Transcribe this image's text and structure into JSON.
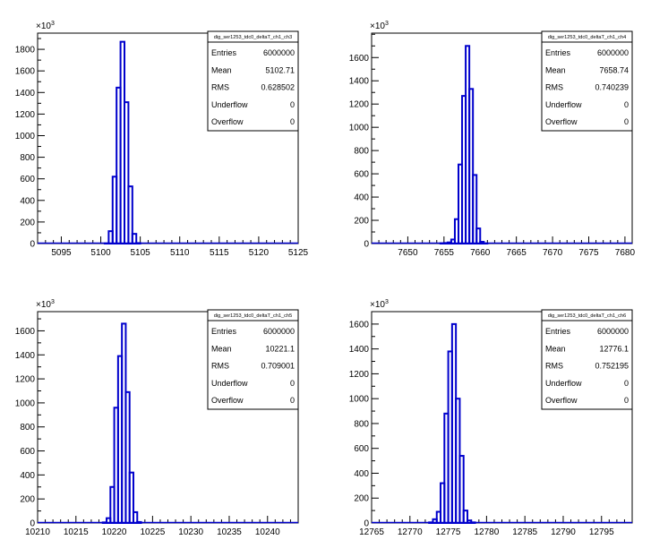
{
  "chart_data": [
    {
      "type": "histogram",
      "title": "dig_ser1253_tdc0_deltaT_ch1_ch3",
      "y_exponent": "×10^3",
      "xlim": [
        5092,
        5125
      ],
      "ylim": [
        0,
        1950
      ],
      "x_ticks": [
        5095,
        5100,
        5105,
        5110,
        5115,
        5120,
        5125
      ],
      "y_ticks": [
        0,
        200,
        400,
        600,
        800,
        1000,
        1200,
        1400,
        1600,
        1800
      ],
      "bin_width": 0.5,
      "bins_x_start": [
        5100,
        5100.5,
        5101,
        5101.5,
        5102,
        5102.5,
        5103,
        5103.5,
        5104,
        5104.5
      ],
      "values": [
        0,
        2,
        115,
        620,
        1445,
        1870,
        1310,
        530,
        90,
        5
      ],
      "stats": [
        {
          "label": "Entries",
          "value": "6000000"
        },
        {
          "label": "Mean",
          "value": "5102.71"
        },
        {
          "label": "RMS",
          "value": "0.628502"
        },
        {
          "label": "Underflow",
          "value": "0"
        },
        {
          "label": "Overflow",
          "value": "0"
        }
      ]
    },
    {
      "type": "histogram",
      "title": "dig_ser1253_tdc0_deltaT_ch1_ch4",
      "y_exponent": "×10^3",
      "xlim": [
        7645,
        7681
      ],
      "ylim": [
        0,
        1810
      ],
      "x_ticks": [
        7650,
        7655,
        7660,
        7665,
        7670,
        7675,
        7680
      ],
      "y_ticks": [
        0,
        200,
        400,
        600,
        800,
        1000,
        1200,
        1400,
        1600
      ],
      "bin_width": 0.5,
      "bins_x_start": [
        7654.5,
        7655,
        7655.5,
        7656,
        7656.5,
        7657,
        7657.5,
        7658,
        7658.5,
        7659,
        7659.5,
        7660,
        7660.5
      ],
      "values": [
        3,
        5,
        10,
        35,
        210,
        680,
        1270,
        1700,
        1330,
        590,
        130,
        15,
        2
      ],
      "stats": [
        {
          "label": "Entries",
          "value": "6000000"
        },
        {
          "label": "Mean",
          "value": "7658.74"
        },
        {
          "label": "RMS",
          "value": "0.740239"
        },
        {
          "label": "Underflow",
          "value": "0"
        },
        {
          "label": "Overflow",
          "value": "0"
        }
      ]
    },
    {
      "type": "histogram",
      "title": "dig_ser1253_tdc0_deltaT_ch1_ch5",
      "y_exponent": "×10^3",
      "xlim": [
        10210,
        10244
      ],
      "ylim": [
        0,
        1760
      ],
      "x_ticks": [
        10210,
        10215,
        10220,
        10225,
        10230,
        10235,
        10240
      ],
      "y_ticks": [
        0,
        200,
        400,
        600,
        800,
        1000,
        1200,
        1400,
        1600
      ],
      "bin_width": 0.5,
      "bins_x_start": [
        10218.5,
        10219,
        10219.5,
        10220,
        10220.5,
        10221,
        10221.5,
        10222,
        10222.5,
        10223
      ],
      "values": [
        5,
        40,
        300,
        960,
        1390,
        1660,
        1090,
        420,
        90,
        8
      ],
      "stats": [
        {
          "label": "Entries",
          "value": "6000000"
        },
        {
          "label": "Mean",
          "value": "10221.1"
        },
        {
          "label": "RMS",
          "value": "0.709001"
        },
        {
          "label": "Underflow",
          "value": "0"
        },
        {
          "label": "Overflow",
          "value": "0"
        }
      ]
    },
    {
      "type": "histogram",
      "title": "dig_ser1253_tdc0_deltaT_ch1_ch6",
      "y_exponent": "×10^3",
      "xlim": [
        12765,
        12799
      ],
      "ylim": [
        0,
        1700
      ],
      "x_ticks": [
        12765,
        12770,
        12775,
        12780,
        12785,
        12790,
        12795
      ],
      "y_ticks": [
        0,
        200,
        400,
        600,
        800,
        1000,
        1200,
        1400,
        1600
      ],
      "bin_width": 0.5,
      "bins_x_start": [
        12772.5,
        12773,
        12773.5,
        12774,
        12774.5,
        12775,
        12775.5,
        12776,
        12776.5,
        12777,
        12777.5,
        12778
      ],
      "values": [
        5,
        30,
        90,
        320,
        880,
        1380,
        1600,
        1000,
        540,
        100,
        20,
        5
      ],
      "stats": [
        {
          "label": "Entries",
          "value": "6000000"
        },
        {
          "label": "Mean",
          "value": "12776.1"
        },
        {
          "label": "RMS",
          "value": "0.752195"
        },
        {
          "label": "Underflow",
          "value": "0"
        },
        {
          "label": "Overflow",
          "value": "0"
        }
      ]
    }
  ]
}
